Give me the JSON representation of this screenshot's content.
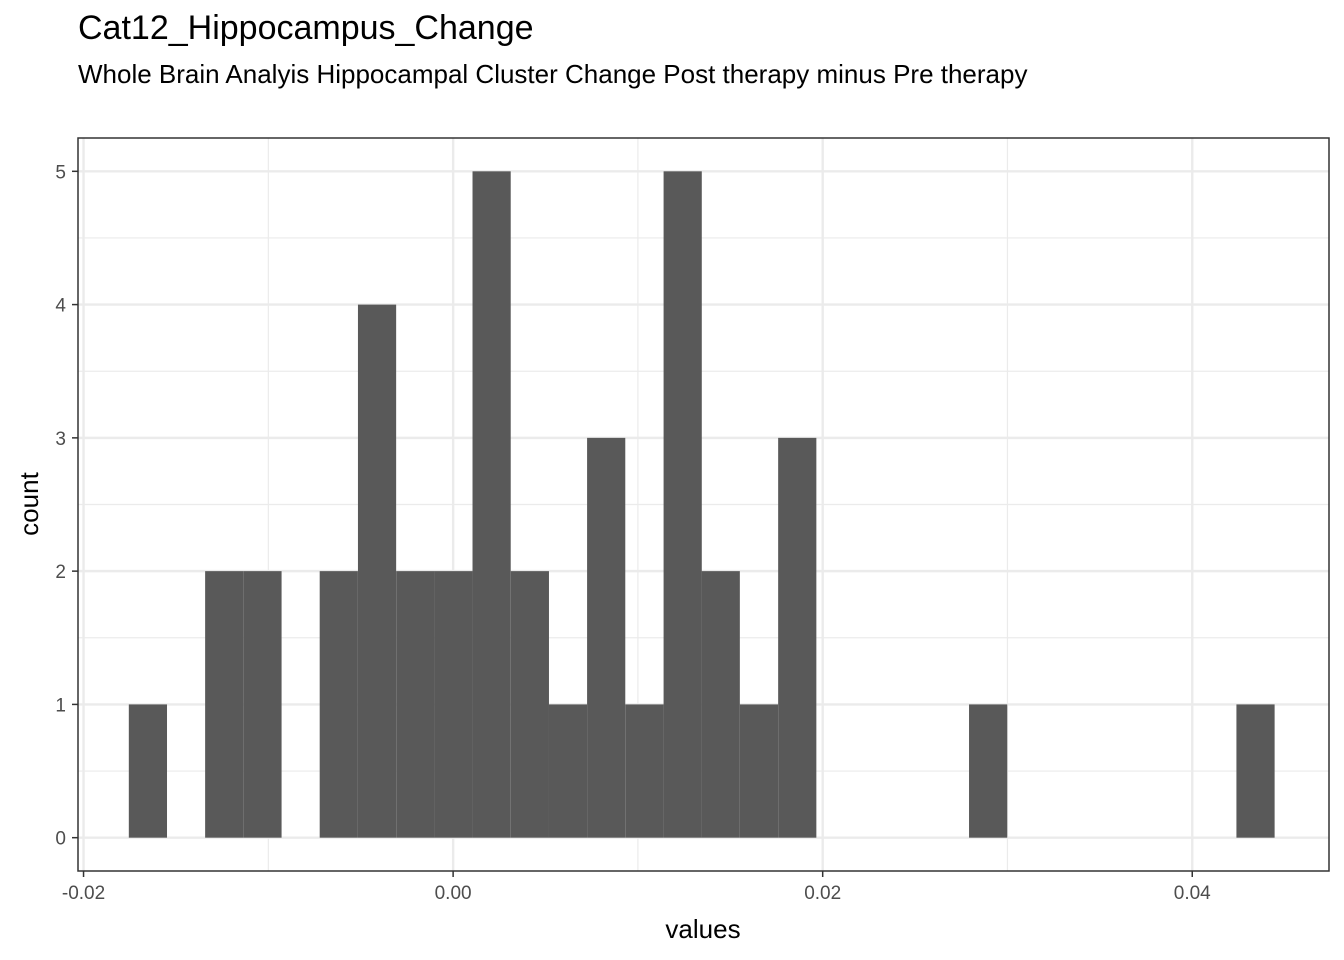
{
  "chart_data": {
    "type": "bar",
    "title": "Cat12_Hippocampus_Change",
    "subtitle": "Whole Brain Analyis Hippocampal Cluster Change Post therapy minus Pre therapy",
    "xlabel": "values",
    "ylabel": "count",
    "xlim": [
      -0.0203,
      0.0474
    ],
    "ylim": [
      -0.25,
      5.25
    ],
    "x_ticks": [
      {
        "value": -0.02,
        "label": "-0.02"
      },
      {
        "value": 0.0,
        "label": "0.00"
      },
      {
        "value": 0.02,
        "label": "0.02"
      },
      {
        "value": 0.04,
        "label": "0.04"
      }
    ],
    "y_ticks": [
      {
        "value": 0,
        "label": "0"
      },
      {
        "value": 1,
        "label": "1"
      },
      {
        "value": 2,
        "label": "2"
      },
      {
        "value": 3,
        "label": "3"
      },
      {
        "value": 4,
        "label": "4"
      },
      {
        "value": 5,
        "label": "5"
      }
    ],
    "grid": true,
    "bin_width": 0.002067,
    "bars": [
      {
        "x0": -0.01755,
        "count": 1
      },
      {
        "x0": -0.01342,
        "count": 2
      },
      {
        "x0": -0.01135,
        "count": 2
      },
      {
        "x0": -0.00722,
        "count": 2
      },
      {
        "x0": -0.00515,
        "count": 4
      },
      {
        "x0": -0.00308,
        "count": 2
      },
      {
        "x0": -0.00102,
        "count": 2
      },
      {
        "x0": 0.00105,
        "count": 5
      },
      {
        "x0": 0.00312,
        "count": 2
      },
      {
        "x0": 0.00518,
        "count": 1
      },
      {
        "x0": 0.00725,
        "count": 3
      },
      {
        "x0": 0.00932,
        "count": 1
      },
      {
        "x0": 0.01139,
        "count": 5
      },
      {
        "x0": 0.01345,
        "count": 2
      },
      {
        "x0": 0.01552,
        "count": 1
      },
      {
        "x0": 0.01759,
        "count": 3
      },
      {
        "x0": 0.02792,
        "count": 1
      },
      {
        "x0": 0.04239,
        "count": 1
      }
    ],
    "bar_color": "#595959",
    "grid_color": "#ebebeb"
  }
}
